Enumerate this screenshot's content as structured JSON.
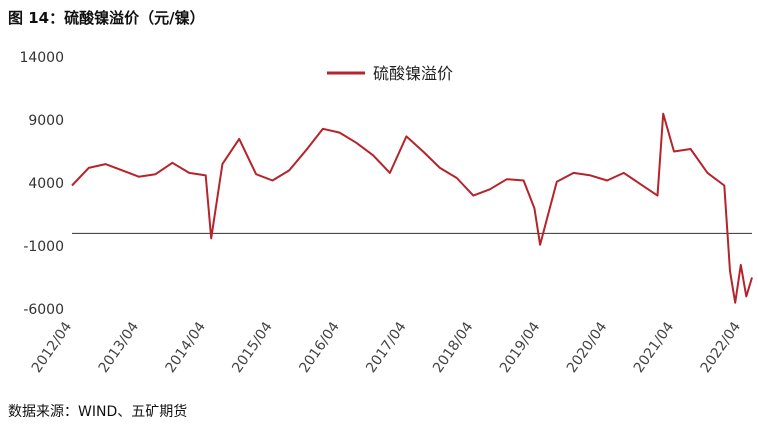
{
  "figure": {
    "title": "图 14：硫酸镍溢价（元/镍）",
    "source": "数据来源：WIND、五矿期货"
  },
  "chart_data": {
    "type": "line",
    "title": "图 14：硫酸镍溢价（元/镍）",
    "xlabel": "",
    "ylabel": "",
    "ylim": [
      -6000,
      14000
    ],
    "yticks": [
      "14000",
      "9000",
      "4000",
      "-1000",
      "-6000"
    ],
    "xticks": [
      "2012/04",
      "2013/04",
      "2014/04",
      "2015/04",
      "2016/04",
      "2017/04",
      "2018/04",
      "2019/04",
      "2020/04",
      "2021/04",
      "2022/04"
    ],
    "legend_position": "top-center",
    "grid": false,
    "line_color": "#b5242a",
    "series": [
      {
        "name": "硫酸镍溢价",
        "x": [
          "2012-04",
          "2012-07",
          "2012-10",
          "2013-01",
          "2013-04",
          "2013-07",
          "2013-10",
          "2014-01",
          "2014-04",
          "2014-05",
          "2014-07",
          "2014-10",
          "2015-01",
          "2015-04",
          "2015-07",
          "2015-10",
          "2016-01",
          "2016-04",
          "2016-07",
          "2016-10",
          "2017-01",
          "2017-04",
          "2017-07",
          "2017-10",
          "2018-01",
          "2018-04",
          "2018-07",
          "2018-10",
          "2019-01",
          "2019-03",
          "2019-04",
          "2019-07",
          "2019-10",
          "2020-01",
          "2020-04",
          "2020-07",
          "2020-10",
          "2021-01",
          "2021-02",
          "2021-04",
          "2021-07",
          "2021-10",
          "2022-01",
          "2022-02",
          "2022-03",
          "2022-04",
          "2022-05",
          "2022-06"
        ],
        "values": [
          3800,
          5200,
          5500,
          5000,
          4500,
          4700,
          5600,
          4800,
          4600,
          -400,
          5500,
          7500,
          4700,
          4200,
          5000,
          6600,
          8300,
          8000,
          7200,
          6200,
          4800,
          7700,
          6500,
          5200,
          4400,
          3000,
          3500,
          4300,
          4200,
          2000,
          -900,
          4100,
          4800,
          4600,
          4200,
          4800,
          3900,
          3000,
          9500,
          6500,
          6700,
          4800,
          3800,
          -3000,
          -5500,
          -2500,
          -5000,
          -3500
        ]
      }
    ]
  }
}
